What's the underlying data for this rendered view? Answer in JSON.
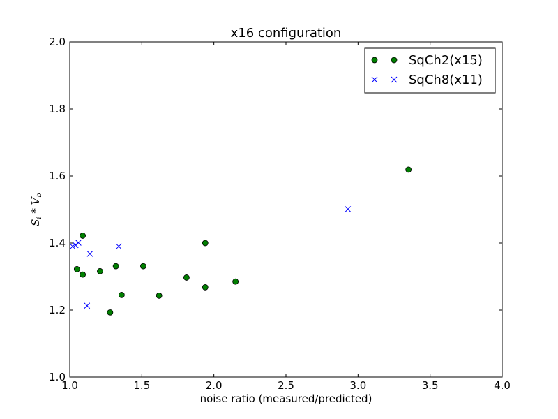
{
  "chart_data": {
    "type": "scatter",
    "title": "x16 configuration",
    "xlabel": "noise ratio (measured/predicted)",
    "ylabel": "S_i * V_b",
    "xlim": [
      1.0,
      4.0
    ],
    "ylim": [
      1.0,
      2.0
    ],
    "xticks": [
      1.0,
      1.5,
      2.0,
      2.5,
      3.0,
      3.5,
      4.0
    ],
    "xtick_labels": [
      "1.0",
      "1.5",
      "2.0",
      "2.5",
      "3.0",
      "3.5",
      "4.0"
    ],
    "yticks": [
      1.0,
      1.2,
      1.4,
      1.6,
      1.8,
      2.0
    ],
    "ytick_labels": [
      "1.0",
      "1.2",
      "1.4",
      "1.6",
      "1.8",
      "2.0"
    ],
    "grid": false,
    "legend_position": "top-right",
    "series": [
      {
        "name": "SqCh2(x15)",
        "marker": "circle",
        "color": "#007f00",
        "points": [
          [
            1.05,
            1.322
          ],
          [
            1.09,
            1.306
          ],
          [
            1.09,
            1.422
          ],
          [
            1.21,
            1.316
          ],
          [
            1.28,
            1.193
          ],
          [
            1.32,
            1.331
          ],
          [
            1.36,
            1.245
          ],
          [
            1.51,
            1.331
          ],
          [
            1.62,
            1.243
          ],
          [
            1.81,
            1.297
          ],
          [
            1.94,
            1.268
          ],
          [
            1.94,
            1.4
          ],
          [
            2.15,
            1.285
          ],
          [
            3.35,
            1.619
          ]
        ]
      },
      {
        "name": "SqCh8(x11)",
        "marker": "x",
        "color": "#0000ff",
        "points": [
          [
            1.02,
            1.39
          ],
          [
            1.04,
            1.394
          ],
          [
            1.06,
            1.401
          ],
          [
            1.12,
            1.213
          ],
          [
            1.14,
            1.368
          ],
          [
            1.34,
            1.39
          ],
          [
            2.93,
            1.501
          ]
        ]
      }
    ]
  }
}
